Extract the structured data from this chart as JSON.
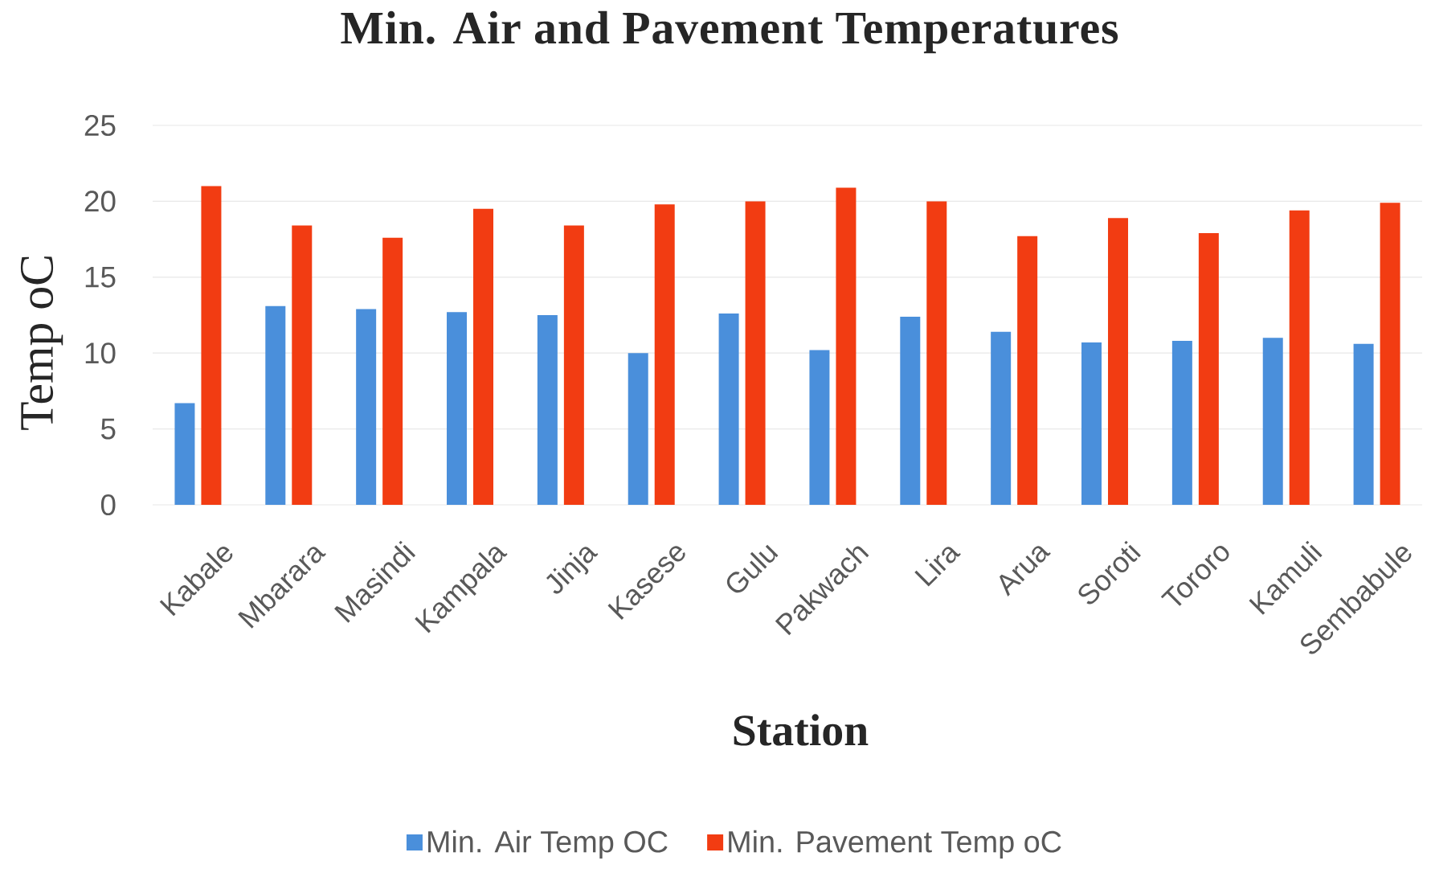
{
  "chart_data": {
    "type": "bar",
    "title": "Min. Air and Pavement Temperatures",
    "xlabel": "Station",
    "ylabel": "Temp oC",
    "categories": [
      "Kabale",
      "Mbarara",
      "Masindi",
      "Kampala",
      "Jinja",
      "Kasese",
      "Gulu",
      "Pakwach",
      "Lira",
      "Arua",
      "Soroti",
      "Tororo",
      "Kamuli",
      "Sembabule"
    ],
    "series": [
      {
        "name": "Min. Air Temp OC",
        "color": "#4a8fdb",
        "values": [
          6.7,
          13.1,
          12.9,
          12.7,
          12.5,
          10.0,
          12.6,
          10.2,
          12.4,
          11.4,
          10.7,
          10.8,
          11.0,
          10.6
        ]
      },
      {
        "name": "Min. Pavement Temp oC",
        "color": "#f23c12",
        "values": [
          21.0,
          18.4,
          17.6,
          19.5,
          18.4,
          19.8,
          20.0,
          20.9,
          20.0,
          17.7,
          18.9,
          17.9,
          19.4,
          19.9
        ]
      }
    ],
    "ylim": [
      0,
      25
    ],
    "yticks": [
      0,
      5,
      10,
      15,
      20,
      25
    ],
    "grid": "y",
    "legend": "bottom"
  }
}
